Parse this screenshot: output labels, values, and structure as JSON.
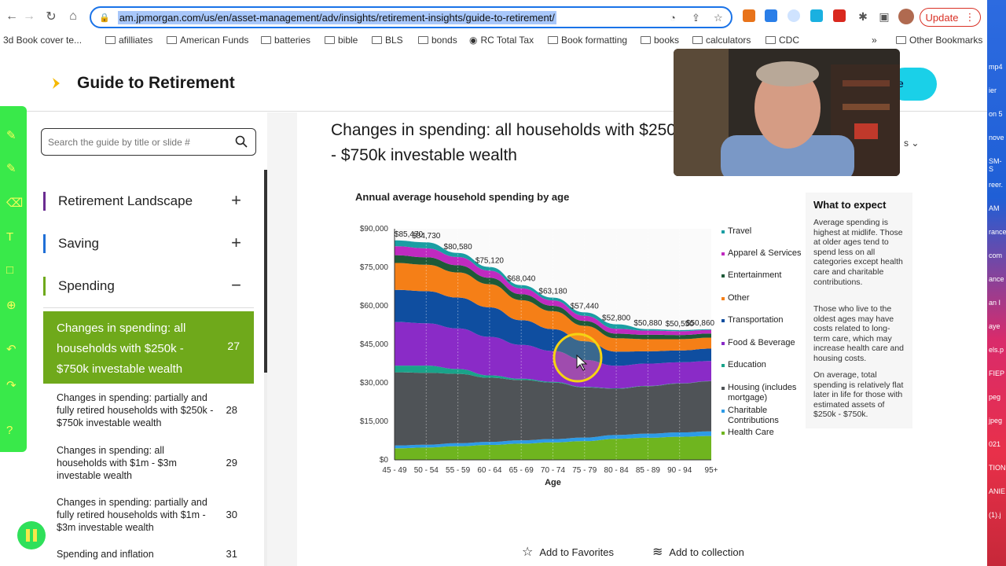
{
  "browser": {
    "url": "am.jpmorgan.com/us/en/asset-management/adv/insights/retirement-insights/guide-to-retirement/",
    "update_label": "Update",
    "bookmarks": [
      "3d Book cover te...",
      "afilliates",
      "American Funds",
      "batteries",
      "bible",
      "BLS",
      "bonds",
      "RC Total Tax",
      "Book formatting",
      "books",
      "calculators",
      "CDC"
    ],
    "more_bookmarks": "»",
    "other_bookmarks": "Other Bookmarks"
  },
  "header": {
    "title": "Guide to Retirement",
    "cta_partial": "e"
  },
  "sidebar": {
    "search_placeholder": "Search the guide by title or slide #",
    "sections": [
      {
        "label": "Retirement Landscape",
        "toggle": "+",
        "color": "#6a2c91"
      },
      {
        "label": "Saving",
        "toggle": "+",
        "color": "#1f6fd6"
      },
      {
        "label": "Spending",
        "toggle": "−",
        "color": "#6fa91b"
      }
    ],
    "active_item": {
      "title": "Changes in spending: all households with $250k - $750k investable wealth",
      "number": "27"
    },
    "items": [
      {
        "title": "Changes in spending: partially and fully retired households with $250k - $750k investable wealth",
        "number": "28"
      },
      {
        "title": "Changes in spending: all households with $1m - $3m investable wealth",
        "number": "29"
      },
      {
        "title": "Changes in spending: partially and fully retired households with $1m - $3m investable wealth",
        "number": "30"
      },
      {
        "title": "Spending and inflation",
        "number": "31"
      }
    ]
  },
  "slide": {
    "title": "Changes in spending: all households with $250k - $750k investable wealth",
    "more_label": "s"
  },
  "chart_data": {
    "type": "area",
    "title": "Annual average household spending by age",
    "xlabel": "Age",
    "ylabel": "",
    "categories": [
      "45 - 49",
      "50 - 54",
      "55 - 59",
      "60 - 64",
      "65 - 69",
      "70 - 74",
      "75 - 79",
      "80 - 84",
      "85 - 89",
      "90 - 94",
      "95+"
    ],
    "y_ticks": [
      "$0",
      "$15,000",
      "$30,000",
      "$45,000",
      "$60,000",
      "$75,000",
      "$90,000"
    ],
    "ylim": [
      0,
      90000
    ],
    "total_labels": [
      "$85,470",
      "$84,730",
      "$80,580",
      "$75,120",
      "$68,040",
      "$63,180",
      "$57,440",
      "$52,800",
      "$50,880",
      "$50,550",
      "$50,860"
    ],
    "totals": [
      85470,
      84730,
      80580,
      75120,
      68040,
      63180,
      57440,
      52800,
      50880,
      50550,
      50860
    ],
    "series": [
      {
        "name": "Health Care",
        "color": "#6fb51f",
        "values": [
          4500,
          4800,
          5300,
          5800,
          6300,
          6800,
          7300,
          8200,
          8600,
          9000,
          9300
        ]
      },
      {
        "name": "Charitable Contributions",
        "color": "#2d9be6",
        "values": [
          1100,
          1100,
          1200,
          1200,
          1300,
          1300,
          1400,
          1500,
          1600,
          1700,
          1800
        ]
      },
      {
        "name": "Housing (includes mortgage)",
        "color": "#4f5357",
        "values": [
          28500,
          28000,
          27000,
          25000,
          23500,
          22000,
          19500,
          18000,
          18500,
          19000,
          19500
        ]
      },
      {
        "name": "Education",
        "color": "#1aa38a",
        "values": [
          2600,
          2800,
          1900,
          900,
          500,
          300,
          200,
          150,
          100,
          100,
          100
        ]
      },
      {
        "name": "Food & Beverage",
        "color": "#8a2bc7",
        "values": [
          17000,
          16500,
          15800,
          15000,
          13200,
          12000,
          10500,
          8800,
          8700,
          8200,
          7800
        ]
      },
      {
        "name": "Transportation",
        "color": "#0f4ea0",
        "values": [
          12500,
          12500,
          12000,
          11500,
          9600,
          8500,
          7300,
          5500,
          4800,
          4600,
          4800
        ]
      },
      {
        "name": "Other",
        "color": "#f57f17",
        "values": [
          10500,
          10300,
          9800,
          9000,
          7800,
          7000,
          6000,
          5200,
          4700,
          4400,
          4300
        ]
      },
      {
        "name": "Entertainment",
        "color": "#1e5a38",
        "values": [
          3000,
          2900,
          2800,
          2500,
          2300,
          2100,
          1900,
          1800,
          1700,
          1600,
          1600
        ]
      },
      {
        "name": "Apparel & Services",
        "color": "#c02ac0",
        "values": [
          3500,
          3500,
          3200,
          2800,
          2300,
          2100,
          2000,
          1900,
          1600,
          1500,
          1400
        ]
      },
      {
        "name": "Travel",
        "color": "#1a9ea3",
        "values": [
          2270,
          2330,
          1580,
          1420,
          1240,
          1080,
          1340,
          1750,
          580,
          450,
          260
        ]
      }
    ],
    "legend_position": "right"
  },
  "expect": {
    "title": "What to expect",
    "p1": "Average spending is highest at midlife. Those at older ages tend to spend less on all categories except health care and charitable contributions.",
    "p2": "Those who live to the oldest ages may have costs related to long-term care, which may increase health care and housing costs.",
    "p3": "On average, total spending is relatively flat later in life for those with estimated assets of $250k - $750k."
  },
  "actions": {
    "favorites": "Add to Favorites",
    "collection": "Add to collection"
  },
  "strip_text": [
    "mp4",
    "ier",
    "on 5",
    "nove",
    "SM-S",
    "reer.",
    "AM",
    "rance",
    "com",
    "ance",
    "an I",
    "aye",
    "els.p",
    "FIEP",
    "peg",
    "jpeg",
    "021",
    "TION",
    "ANIE",
    "(1).j"
  ]
}
